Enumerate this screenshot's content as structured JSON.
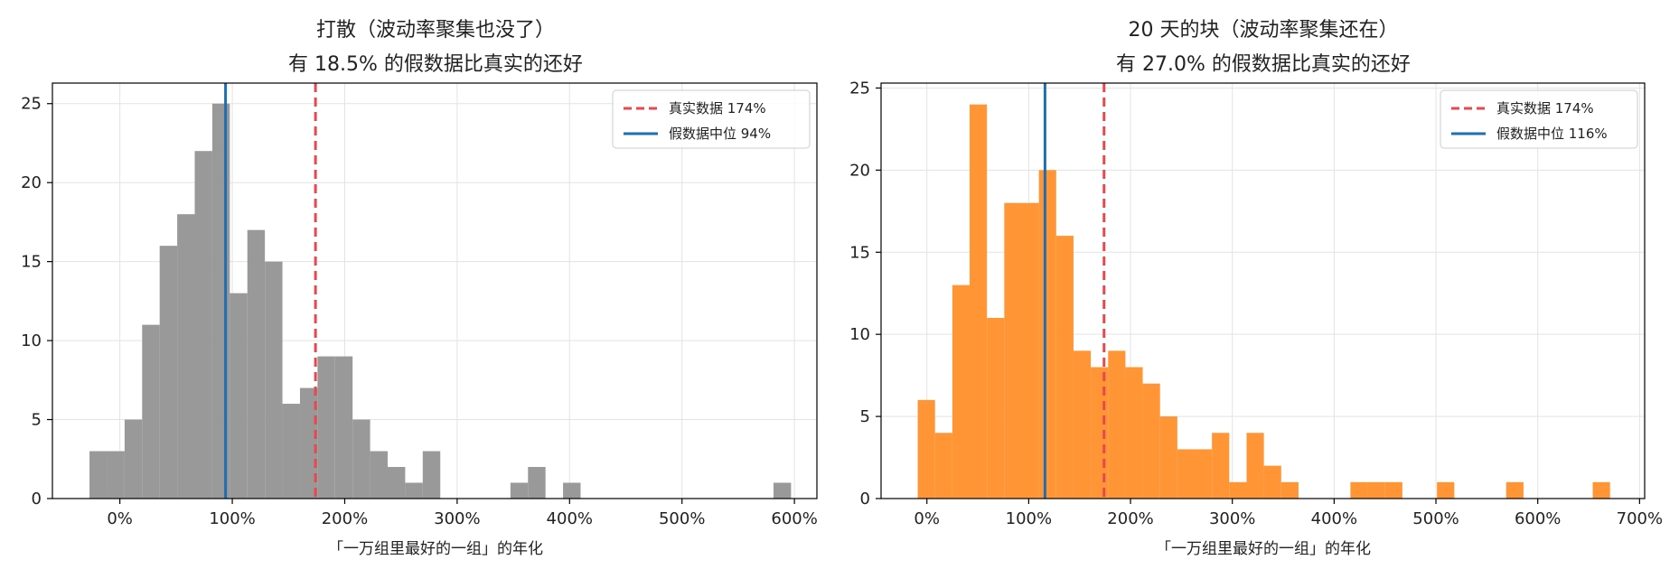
{
  "chart_data": [
    {
      "type": "bar",
      "title_lines": [
        "打散（波动率聚集也没了）",
        "有 18.5% 的假数据比真实的还好"
      ],
      "xlabel": "「一万组里最好的一组」的年化",
      "ylabel": "",
      "xlim": [
        -60,
        620
      ],
      "ylim": [
        0,
        26.3
      ],
      "xticks": [
        0,
        100,
        200,
        300,
        400,
        500,
        600
      ],
      "xtick_labels": [
        "0%",
        "100%",
        "200%",
        "300%",
        "400%",
        "500%",
        "600%"
      ],
      "yticks": [
        0,
        5,
        10,
        15,
        20,
        25
      ],
      "ytick_labels": [
        "0",
        "5",
        "10",
        "15",
        "20",
        "25"
      ],
      "grid": true,
      "legend_position": "top-right",
      "bar_color": "#999999",
      "bin_width": 15.6,
      "bins": [
        {
          "x0": -27,
          "count": 3
        },
        {
          "x0": -11.4,
          "count": 3
        },
        {
          "x0": 4.2,
          "count": 5
        },
        {
          "x0": 19.8,
          "count": 11
        },
        {
          "x0": 35.4,
          "count": 16
        },
        {
          "x0": 51,
          "count": 18
        },
        {
          "x0": 66.6,
          "count": 22
        },
        {
          "x0": 82.2,
          "count": 25
        },
        {
          "x0": 97.8,
          "count": 13
        },
        {
          "x0": 113.4,
          "count": 17
        },
        {
          "x0": 129,
          "count": 15
        },
        {
          "x0": 144.6,
          "count": 6
        },
        {
          "x0": 160.2,
          "count": 7
        },
        {
          "x0": 175.8,
          "count": 9
        },
        {
          "x0": 191.4,
          "count": 9
        },
        {
          "x0": 207,
          "count": 5
        },
        {
          "x0": 222.6,
          "count": 3
        },
        {
          "x0": 238.2,
          "count": 2
        },
        {
          "x0": 253.8,
          "count": 1
        },
        {
          "x0": 269.4,
          "count": 3
        },
        {
          "x0": 347.4,
          "count": 1
        },
        {
          "x0": 363,
          "count": 2
        },
        {
          "x0": 394.2,
          "count": 1
        },
        {
          "x0": 581.4,
          "count": 1
        }
      ],
      "reference_lines": [
        {
          "label": "真实数据 174%",
          "x": 174,
          "color": "#e8474c",
          "style": "dashed"
        },
        {
          "label": "假数据中位 94%",
          "x": 94,
          "color": "#1f6fb0",
          "style": "solid"
        }
      ]
    },
    {
      "type": "bar",
      "title_lines": [
        "20 天的块（波动率聚集还在）",
        "有 27.0% 的假数据比真实的还好"
      ],
      "xlabel": "「一万组里最好的一组」的年化",
      "ylabel": "",
      "xlim": [
        -45,
        705
      ],
      "ylim": [
        0,
        25.3
      ],
      "xticks": [
        0,
        100,
        200,
        300,
        400,
        500,
        600,
        700
      ],
      "xtick_labels": [
        "0%",
        "100%",
        "200%",
        "300%",
        "400%",
        "500%",
        "600%",
        "700%"
      ],
      "yticks": [
        0,
        5,
        10,
        15,
        20,
        25
      ],
      "ytick_labels": [
        "0",
        "5",
        "10",
        "15",
        "20",
        "25"
      ],
      "grid": true,
      "legend_position": "top-right",
      "bar_color": "#ff9535",
      "bin_width": 17,
      "bins": [
        {
          "x0": -9,
          "count": 6
        },
        {
          "x0": 8,
          "count": 4
        },
        {
          "x0": 25,
          "count": 13
        },
        {
          "x0": 42,
          "count": 24
        },
        {
          "x0": 59,
          "count": 11
        },
        {
          "x0": 76,
          "count": 18
        },
        {
          "x0": 93,
          "count": 18
        },
        {
          "x0": 110,
          "count": 20
        },
        {
          "x0": 127,
          "count": 16
        },
        {
          "x0": 144,
          "count": 9
        },
        {
          "x0": 161,
          "count": 8
        },
        {
          "x0": 178,
          "count": 9
        },
        {
          "x0": 195,
          "count": 8
        },
        {
          "x0": 212,
          "count": 7
        },
        {
          "x0": 229,
          "count": 5
        },
        {
          "x0": 246,
          "count": 3
        },
        {
          "x0": 263,
          "count": 3
        },
        {
          "x0": 280,
          "count": 4
        },
        {
          "x0": 297,
          "count": 1
        },
        {
          "x0": 314,
          "count": 4
        },
        {
          "x0": 331,
          "count": 2
        },
        {
          "x0": 348,
          "count": 1
        },
        {
          "x0": 416,
          "count": 1
        },
        {
          "x0": 433,
          "count": 1
        },
        {
          "x0": 450,
          "count": 1
        },
        {
          "x0": 501,
          "count": 1
        },
        {
          "x0": 569,
          "count": 1
        },
        {
          "x0": 654,
          "count": 1
        }
      ],
      "reference_lines": [
        {
          "label": "真实数据 174%",
          "x": 174,
          "color": "#e8474c",
          "style": "dashed"
        },
        {
          "label": "假数据中位 116%",
          "x": 116,
          "color": "#1f6fb0",
          "style": "solid"
        }
      ]
    }
  ]
}
